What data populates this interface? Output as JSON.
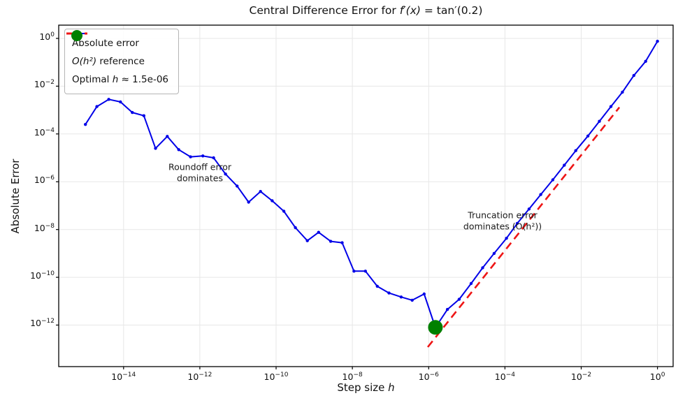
{
  "chart_data": {
    "type": "line",
    "title_parts": {
      "pre": "Central Difference Error for ",
      "math": "f′(x)",
      "post": " = tan′(0.2)"
    },
    "xlabel_parts": {
      "pre": "Step size ",
      "var": "h"
    },
    "ylabel": "Absolute Error",
    "x_scale": "log",
    "y_scale": "log",
    "xlim": [
      2e-16,
      2.6
    ],
    "ylim": [
      1.8e-14,
      3.6
    ],
    "x_tick_exponents": [
      -14,
      -12,
      -10,
      -8,
      -6,
      -4,
      -2,
      0
    ],
    "y_tick_exponents": [
      0,
      -2,
      -4,
      -6,
      -8,
      -10,
      -12
    ],
    "grid": true,
    "legend_position": "upper-left",
    "colors": {
      "absolute_error": "#0000e8",
      "reference": "#ee1515",
      "optimal": "#008000",
      "grid": "#e7e7e7",
      "spine": "#000000",
      "annotation": "#1a1a1a"
    },
    "series": [
      {
        "name": "Absolute error",
        "style": "solid-line-with-markers",
        "points": [
          [
            1e-15,
            0.00025
          ],
          [
            2e-15,
            0.0014
          ],
          [
            4.1e-15,
            0.0028
          ],
          [
            8.3e-15,
            0.0022
          ],
          [
            1.7e-14,
            0.00079
          ],
          [
            3.4e-14,
            0.00058
          ],
          [
            6.9e-14,
            2.5e-05
          ],
          [
            1.4e-13,
            7.9e-05
          ],
          [
            2.8e-13,
            2.2e-05
          ],
          [
            5.7e-13,
            1.1e-05
          ],
          [
            1.2e-12,
            1.2e-05
          ],
          [
            2.3e-12,
            1e-05
          ],
          [
            4.7e-12,
            2.1e-06
          ],
          [
            9.5e-12,
            6.6e-07
          ],
          [
            1.9e-11,
            1.4e-07
          ],
          [
            3.9e-11,
            3.9e-07
          ],
          [
            7.9e-11,
            1.6e-07
          ],
          [
            1.6e-10,
            5.8e-08
          ],
          [
            3.2e-10,
            1.2e-08
          ],
          [
            6.6e-10,
            3.4e-09
          ],
          [
            1.3e-09,
            7.6e-09
          ],
          [
            2.7e-09,
            3.2e-09
          ],
          [
            5.4e-09,
            2.8e-09
          ],
          [
            1.1e-08,
            1.8e-10
          ],
          [
            2.2e-08,
            1.8e-10
          ],
          [
            4.5e-08,
            4.2e-11
          ],
          [
            9.1e-08,
            2.2e-11
          ],
          [
            1.9e-07,
            1.5e-11
          ],
          [
            3.7e-07,
            1.1e-11
          ],
          [
            7.6e-07,
            2e-11
          ],
          [
            1.5e-06,
            7.9e-13
          ],
          [
            3.1e-06,
            4.5e-12
          ],
          [
            6.3e-06,
            1.2e-11
          ],
          [
            1.3e-05,
            5.5e-11
          ],
          [
            2.6e-05,
            2.5e-10
          ],
          [
            5.2e-05,
            1e-09
          ],
          [
            0.00011,
            4.3e-09
          ],
          [
            0.00021,
            1.8e-08
          ],
          [
            0.00043,
            7.2e-08
          ],
          [
            0.00087,
            2.9e-07
          ],
          [
            0.0018,
            1.2e-06
          ],
          [
            0.0036,
            4.9e-06
          ],
          [
            0.0072,
            2e-05
          ],
          [
            0.015,
            8.2e-05
          ],
          [
            0.03,
            0.00034
          ],
          [
            0.06,
            0.0014
          ],
          [
            0.12,
            0.0056
          ],
          [
            0.24,
            0.028
          ],
          [
            0.49,
            0.11
          ],
          [
            1.0,
            0.76
          ]
        ]
      },
      {
        "name": "O(h²) reference",
        "style": "dashed-line",
        "points": [
          [
            9.5e-07,
            1.2e-13
          ],
          [
            0.1,
            0.0013
          ]
        ]
      },
      {
        "name": "Optimal h",
        "style": "scatter-dot",
        "points": [
          [
            1.5e-06,
            8e-13
          ]
        ]
      }
    ],
    "legend": {
      "item1": {
        "label": "Absolute error"
      },
      "item2": {
        "math": "O(h²)",
        "rest": " reference"
      },
      "item3": {
        "pre": "Optimal ",
        "math": "h",
        "rest": " ≈  1.5e-06"
      }
    },
    "annotations": [
      {
        "line1": "Roundoff error",
        "line2": "dominates",
        "h": 1e-12,
        "err": 2.4e-06
      },
      {
        "line1": "Truncation error",
        "line2": "dominates (O(h²))",
        "h": 8.7e-05,
        "err": 2.3e-08
      }
    ]
  }
}
